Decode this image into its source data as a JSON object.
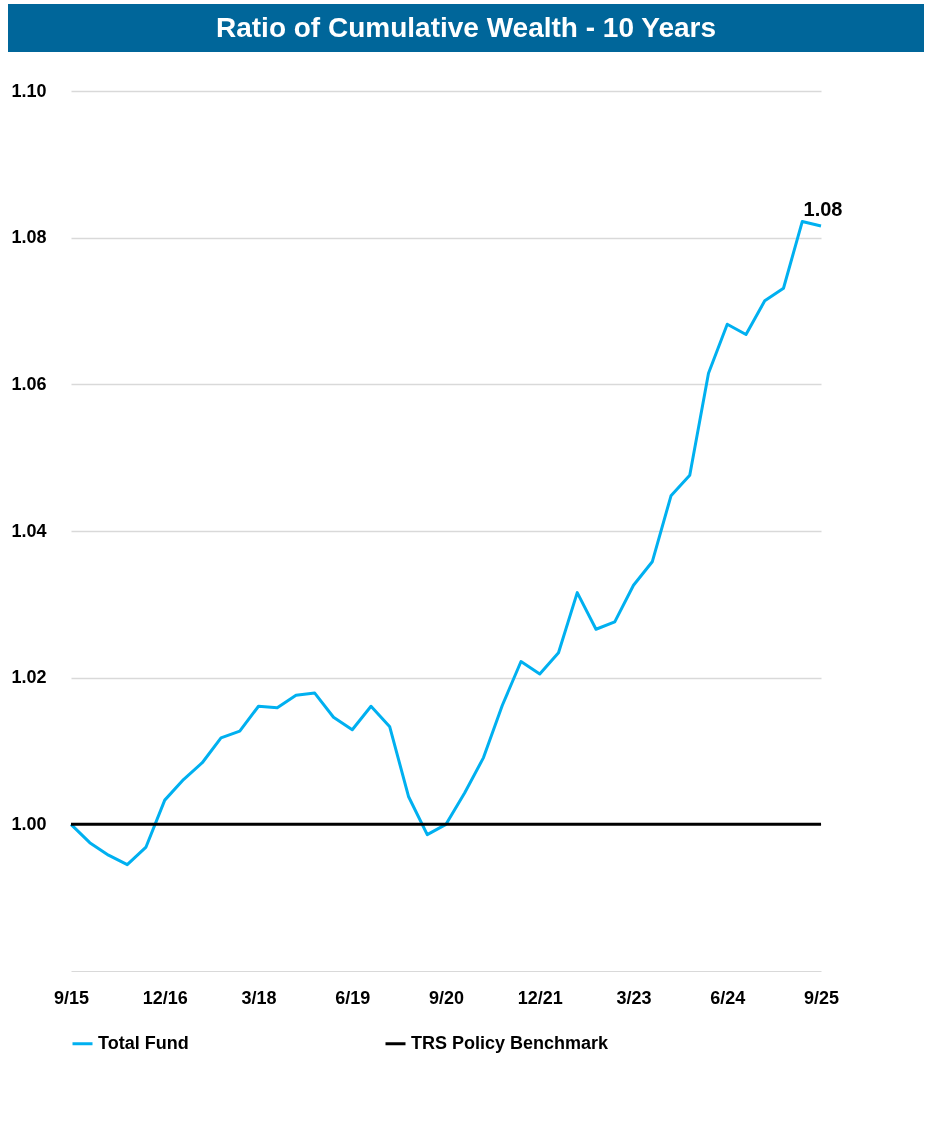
{
  "chart_data": {
    "type": "line",
    "title": "Ratio of Cumulative Wealth - 10 Years",
    "categories": [
      "9/15",
      null,
      null,
      null,
      null,
      "12/16",
      null,
      null,
      null,
      null,
      "3/18",
      null,
      null,
      null,
      null,
      "6/19",
      null,
      null,
      null,
      null,
      "9/20",
      null,
      null,
      null,
      null,
      "12/21",
      null,
      null,
      null,
      null,
      "3/23",
      null,
      null,
      null,
      null,
      "6/24",
      null,
      null,
      null,
      null,
      "9/25"
    ],
    "series": [
      {
        "name": "Total Fund",
        "color": "#00b0f0",
        "values": [
          1.0,
          0.9975,
          0.9958,
          0.9945,
          0.9969,
          1.0033,
          1.0061,
          1.0084,
          1.0118,
          1.0127,
          1.0161,
          1.0159,
          1.0176,
          1.0179,
          1.0146,
          1.0129,
          1.0161,
          1.0133,
          1.0038,
          0.9986,
          1.0,
          1.0043,
          1.0091,
          1.0162,
          1.0222,
          1.0205,
          1.0234,
          1.0316,
          1.0266,
          1.0276,
          1.0326,
          1.0358,
          1.0448,
          1.0476,
          1.0615,
          1.0682,
          1.0668,
          1.0714,
          1.0731,
          1.0822,
          1.0816
        ],
        "value_labels": [
          null,
          null,
          null,
          null,
          null,
          null,
          null,
          null,
          null,
          null,
          null,
          null,
          null,
          null,
          null,
          null,
          null,
          null,
          null,
          null,
          null,
          null,
          null,
          null,
          null,
          null,
          null,
          null,
          null,
          null,
          null,
          null,
          null,
          null,
          null,
          null,
          null,
          null,
          null,
          null,
          "1.08"
        ]
      },
      {
        "name": "TRS Policy Benchmark",
        "color": "#000000",
        "values": [
          1,
          1,
          1,
          1,
          1,
          1,
          1,
          1,
          1,
          1,
          1,
          1,
          1,
          1,
          1,
          1,
          1,
          1,
          1,
          1,
          1,
          1,
          1,
          1,
          1,
          1,
          1,
          1,
          1,
          1,
          1,
          1,
          1,
          1,
          1,
          1,
          1,
          1,
          1,
          1,
          1
        ]
      }
    ],
    "ylim": [
      0.98,
      1.1
    ],
    "yticks": [
      {
        "value": 1,
        "label": "1.00"
      },
      1.02,
      1.04,
      1.06,
      1.08,
      {
        "value": 1.1,
        "label": "1.10"
      }
    ],
    "grid": "y",
    "legend": "bottom",
    "marker": "none",
    "line_style": "solid"
  }
}
